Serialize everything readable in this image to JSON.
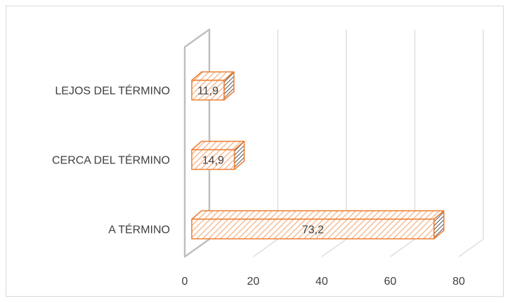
{
  "chart_data": {
    "type": "bar",
    "orientation": "horizontal",
    "style": "3d-clustered-bar",
    "title": "",
    "xlabel": "",
    "ylabel": "",
    "categories": [
      "A TÉRMINO",
      "CERCA DEL TÉRMINO",
      "LEJOS DEL TÉRMINO"
    ],
    "values": [
      73.2,
      14.9,
      11.9
    ],
    "data_labels": [
      "73,2",
      "14,9",
      "11,9"
    ],
    "xlim": [
      0,
      80
    ],
    "x_ticks": [
      "0",
      "20",
      "40",
      "60",
      "80"
    ],
    "grid": true,
    "legend": "none",
    "colors": {
      "bar_border": "#ed7d31",
      "bar_hatch": "#f4b183",
      "bar_fill": "#ffffff",
      "bar_side_dark": "#595959",
      "grid": "#d9d9d9",
      "wall": "#bfbfbf",
      "text": "#404040"
    }
  }
}
